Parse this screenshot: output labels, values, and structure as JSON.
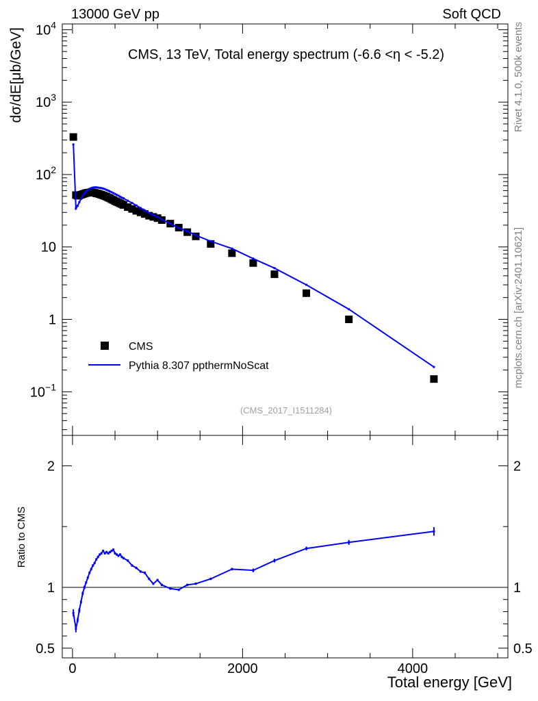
{
  "header": {
    "left_label": "13000 GeV pp",
    "right_label": "Soft QCD"
  },
  "side_labels": {
    "rivet": "Rivet 4.1.0,  500k events",
    "site": "mcplots.cern.ch [arXiv:2401.10621]"
  },
  "chart_data": [
    {
      "type": "scatter+line",
      "panel": "main",
      "title": "CMS, 13 TeV, Total energy spectrum (-6.6 <η < -5.2)",
      "ylabel": "dσ/dE[μb/GeV]",
      "yscale": "log",
      "ylim": [
        0.025,
        12000
      ],
      "xlim": [
        -120,
        5120
      ],
      "y_ticks": [
        {
          "value": 10000,
          "base": "10",
          "exp": "4"
        },
        {
          "value": 1000,
          "base": "10",
          "exp": "3"
        },
        {
          "value": 100,
          "base": "10",
          "exp": "2"
        },
        {
          "value": 10,
          "base": "10",
          "exp": ""
        },
        {
          "value": 1,
          "base": "1",
          "exp": ""
        },
        {
          "value": 0.1,
          "base": "10",
          "exp": "−1"
        }
      ],
      "watermark": "(CMS_2017_I1511284)",
      "legend": {
        "position": "bottom-left",
        "entries": [
          {
            "label": "CMS",
            "marker": "square",
            "color": "#000000"
          },
          {
            "label": "Pythia 8.307 ppthermNoScat",
            "marker": "line",
            "color": "#0000ff"
          }
        ]
      },
      "series": [
        {
          "name": "CMS",
          "color": "#000000",
          "marker": "square",
          "x": [
            10,
            40,
            60,
            80,
            100,
            120,
            140,
            160,
            180,
            200,
            220,
            240,
            260,
            280,
            300,
            320,
            340,
            360,
            380,
            400,
            420,
            440,
            460,
            480,
            500,
            520,
            540,
            560,
            580,
            600,
            650,
            700,
            750,
            800,
            850,
            900,
            950,
            1000,
            1050,
            1150,
            1250,
            1350,
            1450,
            1625,
            1875,
            2125,
            2375,
            2750,
            3250,
            4250
          ],
          "y": [
            330,
            52,
            51,
            51.5,
            52.5,
            53.5,
            54.5,
            55.5,
            56,
            56.5,
            57,
            56.5,
            56,
            55,
            54.5,
            53.5,
            52.5,
            51.5,
            50.5,
            49.5,
            48,
            47,
            45.5,
            44.5,
            43,
            42,
            41,
            40,
            39,
            38,
            35.5,
            33.5,
            31.5,
            30,
            28.5,
            27,
            26,
            25,
            23.5,
            21,
            18.5,
            16,
            14,
            11,
            8.2,
            6.0,
            4.2,
            2.3,
            1.0,
            0.15
          ]
        },
        {
          "name": "Pythia 8.307 ppthermNoScat",
          "color": "#0000ff",
          "marker": "line",
          "x": [
            10,
            40,
            60,
            80,
            100,
            120,
            140,
            160,
            180,
            200,
            220,
            240,
            260,
            280,
            300,
            320,
            340,
            360,
            380,
            400,
            420,
            440,
            460,
            480,
            500,
            520,
            540,
            560,
            580,
            600,
            650,
            700,
            750,
            800,
            850,
            900,
            950,
            1000,
            1050,
            1150,
            1250,
            1350,
            1450,
            1625,
            1875,
            2125,
            2375,
            2750,
            3250,
            4250
          ],
          "y": [
            260,
            34,
            37,
            41.5,
            46,
            51,
            55,
            58.5,
            61,
            63.5,
            65,
            66,
            66.5,
            66.5,
            66,
            65.5,
            65,
            64,
            63,
            61.5,
            60,
            58.5,
            57,
            55.5,
            54,
            52.5,
            51,
            49.5,
            48,
            47,
            43.5,
            40.5,
            37.5,
            34.5,
            32,
            29.5,
            27.5,
            26,
            24,
            21,
            18.3,
            16.5,
            14.5,
            12,
            9.5,
            6.9,
            5.1,
            3.0,
            1.38,
            0.22
          ]
        }
      ]
    },
    {
      "type": "line",
      "panel": "ratio",
      "ylabel": "Ratio to CMS",
      "xlabel": "Total energy [GeV]",
      "ylim": [
        0.42,
        2.25
      ],
      "xlim": [
        -120,
        5120
      ],
      "reference_line": 1,
      "y_ticks": [
        0.5,
        1,
        2
      ],
      "y_tick_labels": [
        "0.5",
        "1",
        "2"
      ],
      "x_ticks": [
        0,
        2000,
        4000
      ],
      "x_tick_labels": [
        "0",
        "2000",
        "4000"
      ],
      "series": [
        {
          "name": "Pythia 8.307 ppthermNoScat / CMS",
          "color": "#0000ff",
          "x": [
            10,
            40,
            60,
            80,
            100,
            120,
            140,
            160,
            180,
            200,
            220,
            240,
            260,
            280,
            300,
            320,
            340,
            360,
            380,
            400,
            420,
            440,
            460,
            480,
            500,
            520,
            540,
            560,
            580,
            600,
            650,
            700,
            750,
            800,
            850,
            900,
            950,
            1000,
            1050,
            1150,
            1250,
            1350,
            1450,
            1625,
            1875,
            2125,
            2375,
            2750,
            3250,
            4250
          ],
          "y": [
            0.79,
            0.66,
            0.73,
            0.81,
            0.88,
            0.95,
            1.0,
            1.04,
            1.08,
            1.12,
            1.15,
            1.18,
            1.2,
            1.23,
            1.25,
            1.27,
            1.28,
            1.3,
            1.28,
            1.29,
            1.28,
            1.29,
            1.3,
            1.31,
            1.28,
            1.27,
            1.26,
            1.27,
            1.25,
            1.24,
            1.22,
            1.18,
            1.16,
            1.13,
            1.12,
            1.07,
            1.03,
            1.06,
            1.02,
            0.99,
            0.98,
            1.02,
            1.03,
            1.07,
            1.15,
            1.14,
            1.22,
            1.32,
            1.37,
            1.46
          ],
          "error": [
            0.03,
            0.03,
            0.02,
            0.02,
            0.015,
            0.015,
            0.015,
            0.01,
            0.01,
            0.01,
            0.01,
            0.01,
            0.01,
            0.01,
            0.01,
            0.01,
            0.01,
            0.01,
            0.01,
            0.01,
            0.01,
            0.01,
            0.01,
            0.01,
            0.01,
            0.01,
            0.01,
            0.01,
            0.01,
            0.01,
            0.01,
            0.01,
            0.01,
            0.01,
            0.01,
            0.01,
            0.01,
            0.01,
            0.01,
            0.01,
            0.01,
            0.01,
            0.01,
            0.01,
            0.01,
            0.015,
            0.015,
            0.015,
            0.02,
            0.035
          ]
        }
      ]
    }
  ]
}
